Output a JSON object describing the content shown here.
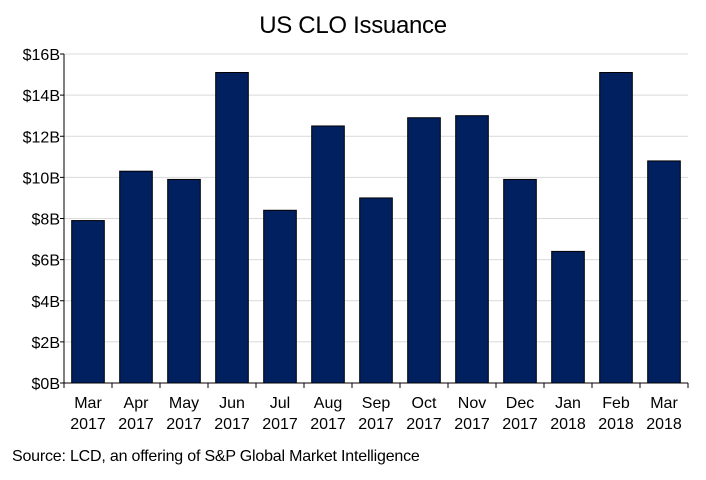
{
  "chart_data": {
    "type": "bar",
    "title": "US CLO Issuance",
    "xlabel": "",
    "ylabel": "",
    "categories": [
      [
        "Mar",
        "2017"
      ],
      [
        "Apr",
        "2017"
      ],
      [
        "May",
        "2017"
      ],
      [
        "Jun",
        "2017"
      ],
      [
        "Jul",
        "2017"
      ],
      [
        "Aug",
        "2017"
      ],
      [
        "Sep",
        "2017"
      ],
      [
        "Oct",
        "2017"
      ],
      [
        "Nov",
        "2017"
      ],
      [
        "Dec",
        "2017"
      ],
      [
        "Jan",
        "2018"
      ],
      [
        "Feb",
        "2018"
      ],
      [
        "Mar",
        "2018"
      ]
    ],
    "values": [
      7.9,
      10.3,
      9.9,
      15.1,
      8.4,
      12.5,
      9.0,
      12.9,
      13.0,
      9.9,
      6.4,
      15.1,
      10.8
    ],
    "value_unit": "USD billions",
    "ylim": [
      0,
      16
    ],
    "yticks": [
      0,
      2,
      4,
      6,
      8,
      10,
      12,
      14,
      16
    ],
    "ytick_labels": [
      "$0B",
      "$2B",
      "$4B",
      "$6B",
      "$8B",
      "$10B",
      "$12B",
      "$14B",
      "$16B"
    ],
    "grid": true,
    "legend": "none",
    "bar_color": "#002060",
    "bar_edge_color": "#000000",
    "grid_color": "#d9d9d9"
  },
  "source_note": "Source: LCD, an offering of S&P Global Market Intelligence"
}
